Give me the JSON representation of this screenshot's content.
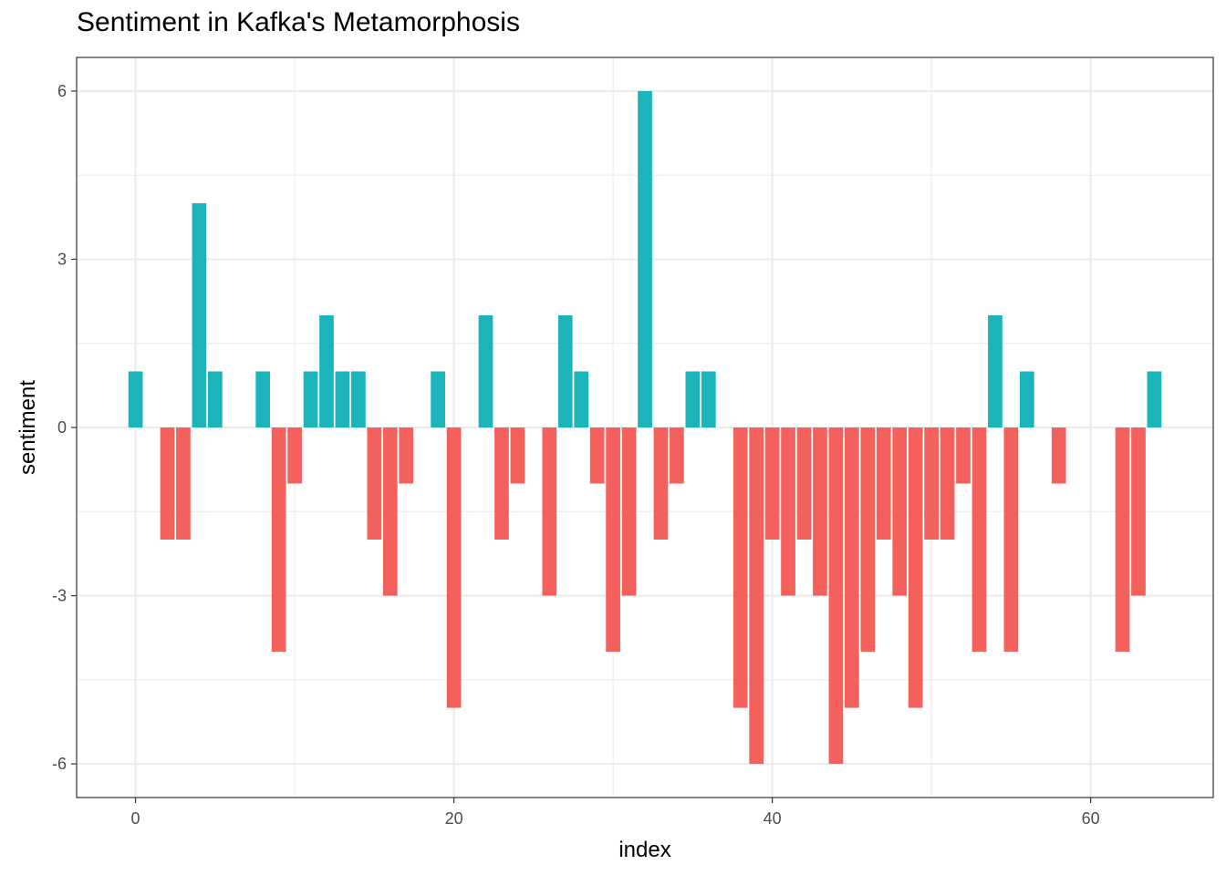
{
  "chart_data": {
    "type": "bar",
    "title": "Sentiment in Kafka's Metamorphosis",
    "xlabel": "index",
    "ylabel": "sentiment",
    "xlim": [
      -3.7,
      67.7
    ],
    "ylim": [
      -6.6,
      6.6
    ],
    "xticks": [
      0,
      20,
      40,
      60
    ],
    "yticks": [
      6,
      3,
      0,
      -3,
      -6
    ],
    "ytick_labels": [
      "6",
      "3",
      "0",
      "-3",
      "-6"
    ],
    "xtick_labels": [
      "0",
      "20",
      "40",
      "60"
    ],
    "grid": true,
    "legend": "none",
    "colors": {
      "positive": "#1BB5B9",
      "negative": "#F4605C",
      "grid": "#EBEBEB",
      "border": "#333333"
    },
    "x": [
      0,
      1,
      2,
      3,
      4,
      5,
      6,
      7,
      8,
      9,
      10,
      11,
      12,
      13,
      14,
      15,
      16,
      17,
      18,
      19,
      20,
      21,
      22,
      23,
      24,
      25,
      26,
      27,
      28,
      29,
      30,
      31,
      32,
      33,
      34,
      35,
      36,
      37,
      38,
      39,
      40,
      41,
      42,
      43,
      44,
      45,
      46,
      47,
      48,
      49,
      50,
      51,
      52,
      53,
      54,
      55,
      56,
      57,
      58,
      59,
      60,
      61,
      62,
      63,
      64
    ],
    "values": [
      1,
      0,
      -2,
      -2,
      4,
      1,
      0,
      0,
      1,
      -4,
      -1,
      1,
      2,
      1,
      1,
      -2,
      -3,
      -1,
      0,
      1,
      -5,
      0,
      2,
      -2,
      -1,
      0,
      -3,
      2,
      1,
      -1,
      -4,
      -3,
      6,
      -2,
      -1,
      1,
      1,
      0,
      -5,
      -6,
      -2,
      -3,
      -2,
      -3,
      -6,
      -5,
      -4,
      -2,
      -3,
      -5,
      -2,
      -2,
      -1,
      -4,
      2,
      -4,
      1,
      0,
      -1,
      0,
      0,
      0,
      -4,
      -3,
      1
    ]
  }
}
